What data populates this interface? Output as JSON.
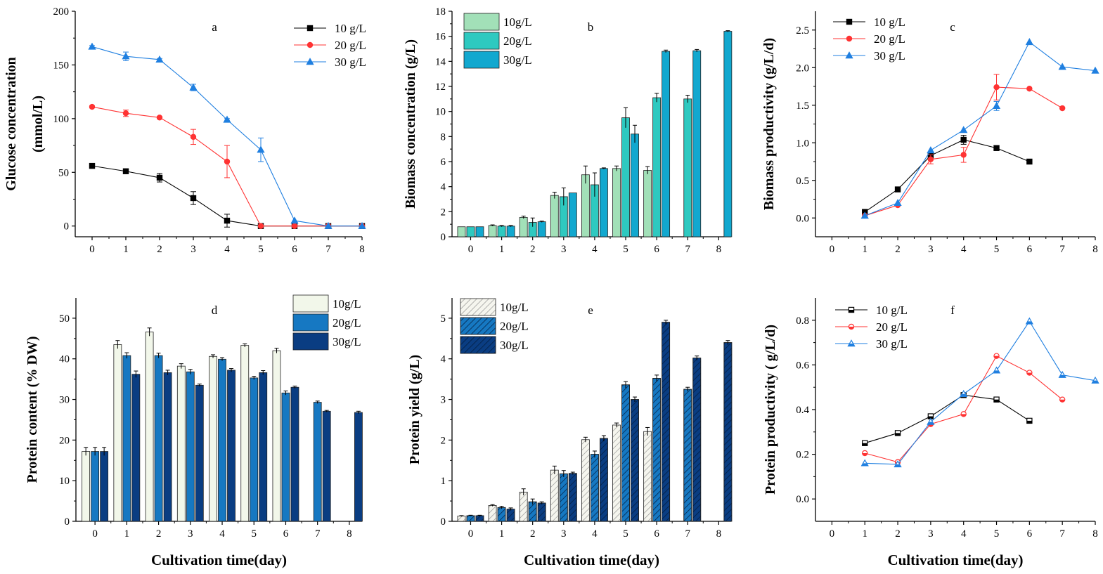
{
  "figure": {
    "xlabel": "Cultivation time(day)",
    "colors": {
      "c10": "#000000",
      "c20": "#ff3333",
      "c30": "#1f7fe0",
      "b10": "#a2e0b8",
      "b20": "#2ec9c0",
      "b30": "#12a8cf",
      "d10": "#f2f7ea",
      "d20": "#1678c2",
      "d30": "#0a3d82"
    }
  },
  "chart_data": [
    {
      "id": "a",
      "type": "line",
      "panel_label": "a",
      "ylabel": [
        "Glucose concentration",
        "(mmol/L)"
      ],
      "xlabel": "",
      "xlim": [
        -0.5,
        8
      ],
      "ylim": [
        -10,
        200
      ],
      "xticks": [
        0,
        1,
        2,
        3,
        4,
        5,
        6,
        7,
        8
      ],
      "yticks": [
        0,
        50,
        100,
        150,
        200
      ],
      "marker_fill": "solid",
      "series": [
        {
          "name": "10 g/L",
          "marker": "square",
          "color": "#000000",
          "x": [
            0,
            1,
            2,
            3,
            4,
            5,
            6,
            7,
            8
          ],
          "y": [
            56,
            51,
            45,
            26,
            5,
            0,
            0,
            0,
            0
          ],
          "err": [
            1,
            1,
            4,
            6,
            6,
            0,
            0,
            0,
            0
          ]
        },
        {
          "name": "20 g/L",
          "marker": "circle",
          "color": "#ff3333",
          "x": [
            0,
            1,
            2,
            3,
            4,
            5,
            6,
            7,
            8
          ],
          "y": [
            111,
            105,
            101,
            83,
            60,
            0,
            0,
            0,
            0
          ],
          "err": [
            1,
            3,
            1,
            7,
            15,
            0,
            0,
            0,
            0
          ]
        },
        {
          "name": "30 g/L",
          "marker": "triangle",
          "color": "#1f7fe0",
          "x": [
            0,
            1,
            2,
            3,
            4,
            5,
            6,
            7,
            8
          ],
          "y": [
            167,
            158,
            155,
            129,
            99,
            71,
            5,
            0,
            0
          ],
          "err": [
            1,
            4,
            1,
            3,
            1,
            11,
            0,
            0,
            0
          ]
        }
      ]
    },
    {
      "id": "b",
      "type": "bar",
      "panel_label": "b",
      "ylabel": [
        "Biomass concentration (g/L)"
      ],
      "xlabel": "",
      "xlim": [
        -0.6,
        8.4
      ],
      "ylim": [
        0,
        18
      ],
      "xticks": [
        0,
        1,
        2,
        3,
        4,
        5,
        6,
        7,
        8
      ],
      "yticks": [
        0,
        2,
        4,
        6,
        8,
        10,
        12,
        14,
        16,
        18
      ],
      "series": [
        {
          "name": "10g/L",
          "color": "#a2e0b8",
          "pattern": "none",
          "values": [
            0.8,
            0.9,
            1.55,
            3.3,
            4.95,
            5.45,
            5.3,
            null,
            null
          ],
          "err": [
            0,
            0.05,
            0.1,
            0.25,
            0.7,
            0.2,
            0.3,
            0,
            0
          ]
        },
        {
          "name": "20g/L",
          "color": "#2ec9c0",
          "pattern": "none",
          "values": [
            0.8,
            0.85,
            1.15,
            3.2,
            4.15,
            9.5,
            11.1,
            11.0,
            null
          ],
          "err": [
            0,
            0.05,
            0.35,
            0.7,
            0.95,
            0.8,
            0.35,
            0.3,
            0
          ]
        },
        {
          "name": "30g/L",
          "color": "#12a8cf",
          "pattern": "none",
          "values": [
            0.8,
            0.85,
            1.2,
            3.5,
            5.45,
            8.2,
            14.8,
            14.85,
            16.4
          ],
          "err": [
            0,
            0.05,
            0.05,
            0,
            0.05,
            0.7,
            0.1,
            0.1,
            0.05
          ]
        }
      ]
    },
    {
      "id": "c",
      "type": "line",
      "panel_label": "c",
      "ylabel": [
        "Biomass productivity (g/L/d)"
      ],
      "xlabel": "",
      "xlim": [
        -0.5,
        8
      ],
      "ylim": [
        -0.25,
        2.75
      ],
      "xticks": [
        0,
        1,
        2,
        3,
        4,
        5,
        6,
        7,
        8
      ],
      "yticks": [
        0.0,
        0.5,
        1.0,
        1.5,
        2.0,
        2.5
      ],
      "marker_fill": "solid",
      "series": [
        {
          "name": "10 g/L",
          "marker": "square",
          "color": "#000000",
          "x": [
            1,
            2,
            3,
            4,
            5,
            6
          ],
          "y": [
            0.08,
            0.38,
            0.83,
            1.04,
            0.93,
            0.75
          ],
          "err": [
            0,
            0,
            0.03,
            0.06,
            0,
            0
          ]
        },
        {
          "name": "20 g/L",
          "marker": "circle",
          "color": "#ff3333",
          "x": [
            1,
            2,
            3,
            4,
            5,
            6,
            7
          ],
          "y": [
            0.03,
            0.17,
            0.78,
            0.84,
            1.74,
            1.72,
            1.46
          ],
          "err": [
            0,
            0,
            0.06,
            0.1,
            0.17,
            0,
            0
          ]
        },
        {
          "name": "30 g/L",
          "marker": "triangle",
          "color": "#1f7fe0",
          "x": [
            1,
            2,
            3,
            4,
            5,
            6,
            7,
            8
          ],
          "y": [
            0.03,
            0.2,
            0.9,
            1.17,
            1.49,
            2.34,
            2.01,
            1.96
          ],
          "err": [
            0,
            0,
            0,
            0,
            0.06,
            0,
            0,
            0
          ]
        }
      ]
    },
    {
      "id": "d",
      "type": "bar",
      "panel_label": "d",
      "ylabel": [
        "Protein content (% DW)"
      ],
      "xlabel": "Cultivation time(day)",
      "xlim": [
        -0.6,
        8.4
      ],
      "ylim": [
        0,
        55
      ],
      "xticks": [
        0,
        1,
        2,
        3,
        4,
        5,
        6,
        7,
        8
      ],
      "yticks": [
        0,
        10,
        20,
        30,
        40,
        50
      ],
      "series": [
        {
          "name": "10g/L",
          "color": "#f2f7ea",
          "pattern": "none",
          "values": [
            17.2,
            43.5,
            46.6,
            38.2,
            40.6,
            43.3,
            42.0,
            null,
            null
          ],
          "err": [
            1.0,
            1.0,
            1.0,
            0.6,
            0.4,
            0.4,
            0.6,
            0,
            0
          ]
        },
        {
          "name": "20g/L",
          "color": "#1678c2",
          "pattern": "none",
          "values": [
            17.2,
            40.8,
            40.8,
            36.8,
            39.9,
            35.3,
            31.6,
            29.3,
            null
          ],
          "err": [
            1.0,
            0.7,
            0.6,
            0.6,
            0.4,
            0.4,
            0.5,
            0.3,
            0
          ]
        },
        {
          "name": "30g/L",
          "color": "#0a3d82",
          "pattern": "none",
          "values": [
            17.2,
            36.2,
            36.6,
            33.5,
            37.2,
            36.6,
            33.0,
            27.1,
            26.8
          ],
          "err": [
            1.0,
            0.8,
            0.6,
            0.3,
            0.4,
            0.5,
            0.3,
            0.2,
            0.3
          ]
        }
      ]
    },
    {
      "id": "e",
      "type": "bar",
      "panel_label": "e",
      "ylabel": [
        "Protein yield (g/L)"
      ],
      "xlabel": "Cultivation time(day)",
      "xlim": [
        -0.6,
        8.4
      ],
      "ylim": [
        0,
        5.5
      ],
      "xticks": [
        0,
        1,
        2,
        3,
        4,
        5,
        6,
        7,
        8
      ],
      "yticks": [
        0,
        1,
        2,
        3,
        4,
        5
      ],
      "series": [
        {
          "name": "10g/L",
          "color": "#f5f5ee",
          "pattern": "hatch-light",
          "values": [
            0.13,
            0.39,
            0.72,
            1.26,
            2.01,
            2.37,
            2.21,
            null,
            null
          ],
          "err": [
            0.01,
            0.02,
            0.08,
            0.1,
            0.06,
            0.05,
            0.1,
            0,
            0
          ]
        },
        {
          "name": "20g/L",
          "color": "#1678c2",
          "pattern": "hatch-dark",
          "values": [
            0.14,
            0.34,
            0.48,
            1.17,
            1.65,
            3.36,
            3.52,
            3.25,
            null
          ],
          "err": [
            0.01,
            0.03,
            0.07,
            0.08,
            0.08,
            0.08,
            0.08,
            0.05,
            0
          ]
        },
        {
          "name": "30g/L",
          "color": "#0a3d82",
          "pattern": "hatch-dark",
          "values": [
            0.14,
            0.3,
            0.45,
            1.18,
            2.04,
            3.0,
            4.9,
            4.02,
            4.4
          ],
          "err": [
            0.01,
            0.03,
            0.03,
            0.03,
            0.07,
            0.06,
            0.05,
            0.05,
            0.05
          ]
        }
      ]
    },
    {
      "id": "f",
      "type": "line",
      "panel_label": "f",
      "ylabel": [
        "Protein productivity ( g/L/d)"
      ],
      "xlabel": "Cultivation time(day)",
      "xlim": [
        -0.5,
        8
      ],
      "ylim": [
        -0.1,
        0.9
      ],
      "xticks": [
        0,
        1,
        2,
        3,
        4,
        5,
        6,
        7,
        8
      ],
      "yticks": [
        0.0,
        0.2,
        0.4,
        0.6,
        0.8
      ],
      "marker_fill": "half",
      "series": [
        {
          "name": "10 g/L",
          "marker": "square",
          "color": "#000000",
          "x": [
            1,
            2,
            3,
            4,
            5,
            6
          ],
          "y": [
            0.25,
            0.295,
            0.37,
            0.465,
            0.445,
            0.35
          ],
          "err": [
            0,
            0,
            0,
            0,
            0,
            0
          ]
        },
        {
          "name": "20 g/L",
          "marker": "circle",
          "color": "#ff3333",
          "x": [
            1,
            2,
            3,
            4,
            5,
            6,
            7
          ],
          "y": [
            0.205,
            0.165,
            0.335,
            0.38,
            0.64,
            0.565,
            0.445
          ],
          "err": [
            0,
            0,
            0,
            0,
            0,
            0,
            0
          ]
        },
        {
          "name": "30 g/L",
          "marker": "triangle",
          "color": "#1f7fe0",
          "x": [
            1,
            2,
            3,
            4,
            5,
            6,
            7,
            8
          ],
          "y": [
            0.16,
            0.155,
            0.345,
            0.47,
            0.575,
            0.795,
            0.555,
            0.53
          ],
          "err": [
            0,
            0,
            0,
            0,
            0,
            0,
            0,
            0
          ]
        }
      ]
    }
  ]
}
